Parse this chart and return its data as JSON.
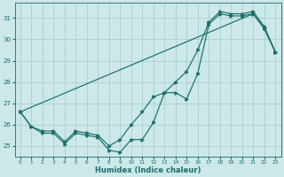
{
  "xlabel": "Humidex (Indice chaleur)",
  "xlim": [
    -0.5,
    23.5
  ],
  "ylim": [
    24.5,
    31.7
  ],
  "yticks": [
    25,
    26,
    27,
    28,
    29,
    30,
    31
  ],
  "xticks": [
    0,
    1,
    2,
    3,
    4,
    5,
    6,
    7,
    8,
    9,
    10,
    11,
    12,
    13,
    14,
    15,
    16,
    17,
    18,
    19,
    20,
    21,
    22,
    23
  ],
  "bg_color": "#cce8e8",
  "grid_color": "#aacfcf",
  "line_color": "#1a6e6a",
  "line1_x": [
    0,
    1,
    2,
    3,
    4,
    5,
    6,
    7,
    8,
    9,
    10,
    11,
    12,
    13,
    14,
    15,
    16,
    17,
    18,
    19,
    20,
    21,
    22,
    23
  ],
  "line1_y": [
    26.6,
    25.9,
    25.6,
    25.6,
    25.1,
    25.6,
    25.5,
    25.4,
    24.8,
    24.7,
    25.3,
    25.3,
    26.1,
    27.5,
    27.5,
    27.2,
    28.4,
    30.7,
    31.2,
    31.1,
    31.1,
    31.2,
    30.5,
    29.4
  ],
  "line2_x": [
    0,
    1,
    2,
    3,
    4,
    5,
    6,
    7,
    8,
    9,
    10,
    11,
    12,
    13,
    14,
    15,
    16,
    17,
    18,
    19,
    20,
    21,
    22,
    23
  ],
  "line2_y": [
    26.6,
    25.9,
    25.7,
    25.7,
    25.2,
    25.7,
    25.6,
    25.5,
    25.0,
    25.3,
    26.0,
    26.6,
    27.3,
    27.5,
    28.0,
    28.5,
    29.5,
    30.8,
    31.3,
    31.2,
    31.2,
    31.3,
    30.6,
    29.4
  ],
  "line3_x": [
    0,
    21,
    22,
    23
  ],
  "line3_y": [
    26.6,
    31.2,
    30.5,
    29.4
  ]
}
